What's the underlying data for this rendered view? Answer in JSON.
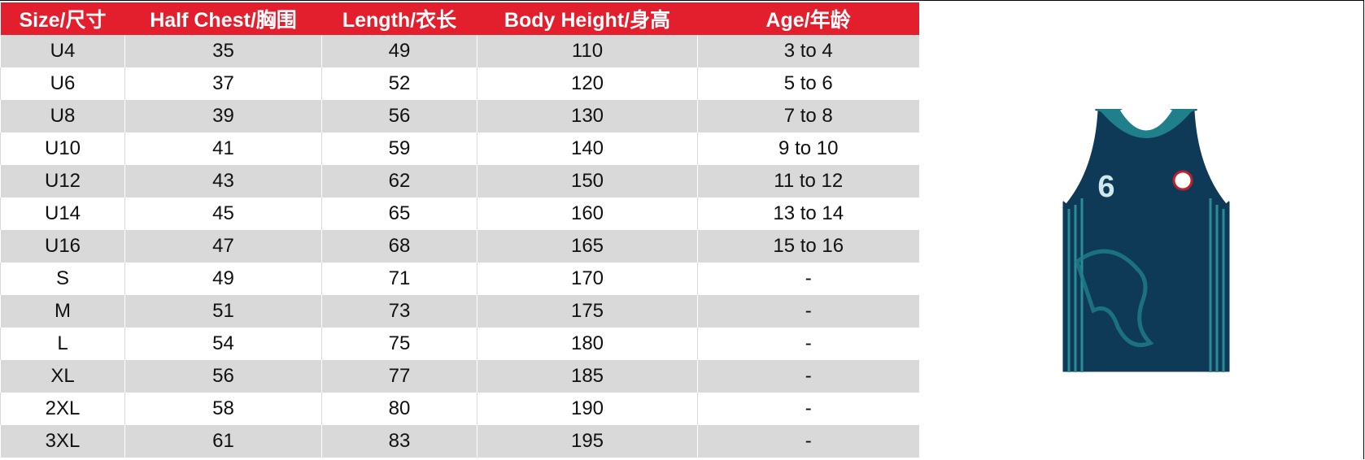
{
  "table": {
    "header": [
      "Size/尺寸",
      "Half Chest/胸围",
      "Length/衣长",
      "Body Height/身高",
      "Age/年龄"
    ],
    "rows": [
      [
        "U4",
        35,
        49,
        110,
        "3 to 4"
      ],
      [
        "U6",
        37,
        52,
        120,
        "5 to 6"
      ],
      [
        "U8",
        39,
        56,
        130,
        "7 to 8"
      ],
      [
        "U10",
        41,
        59,
        140,
        "9 to 10"
      ],
      [
        "U12",
        43,
        62,
        150,
        "11 to 12"
      ],
      [
        "U14",
        45,
        65,
        160,
        "13 to 14"
      ],
      [
        "U16",
        47,
        68,
        165,
        "15 to 16"
      ],
      [
        "S",
        49,
        71,
        170,
        "-"
      ],
      [
        "M",
        51,
        73,
        175,
        "-"
      ],
      [
        "L",
        54,
        75,
        180,
        "-"
      ],
      [
        "XL",
        56,
        77,
        185,
        "-"
      ],
      [
        "2XL",
        58,
        80,
        190,
        "-"
      ],
      [
        "3XL",
        61,
        83,
        195,
        "-"
      ]
    ]
  },
  "jersey": {
    "number": "6"
  }
}
